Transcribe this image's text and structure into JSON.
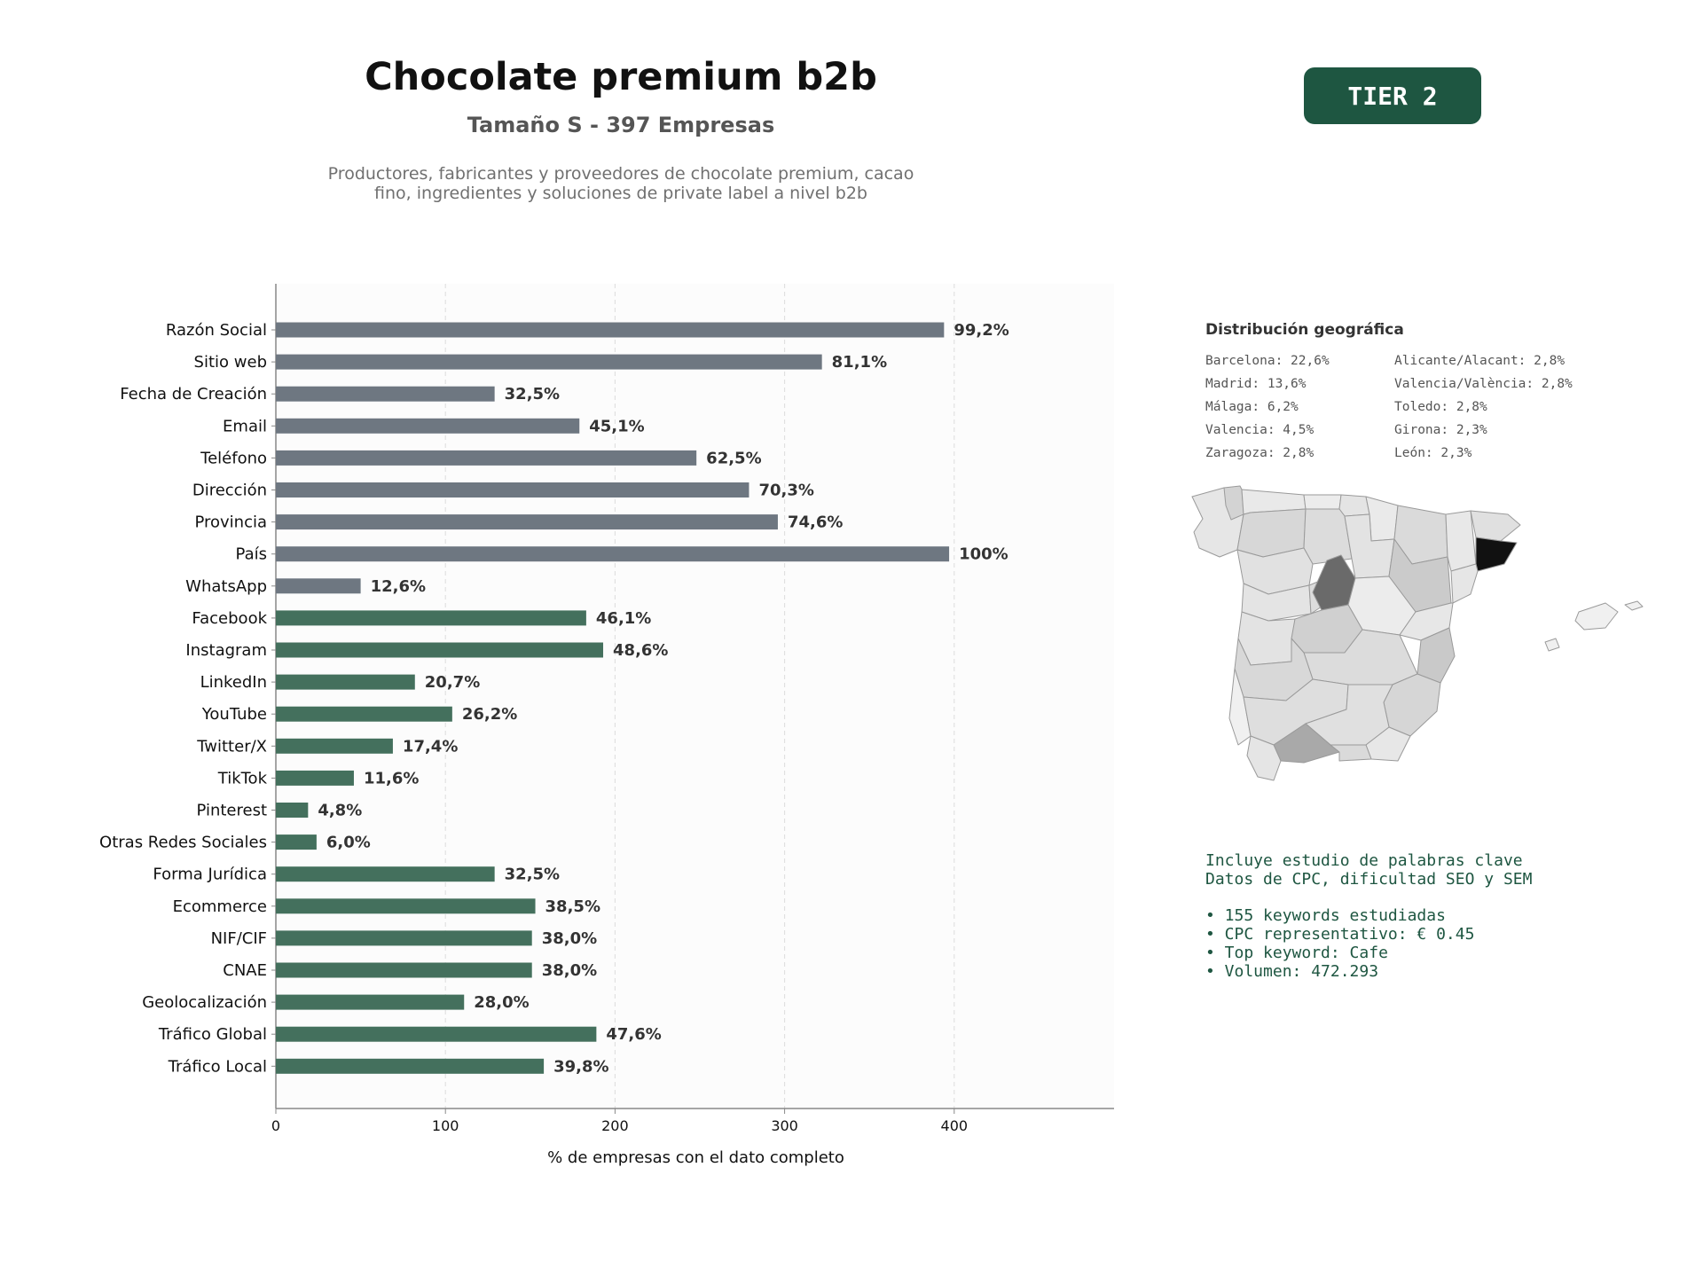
{
  "header": {
    "title": "Chocolate premium b2b",
    "subtitle": "Tamaño S - 397 Empresas",
    "description": [
      "Productores, fabricantes y proveedores de chocolate premium, cacao",
      "fino, ingredientes y soluciones de private label a nivel b2b"
    ],
    "tier": "TIER 2"
  },
  "colors": {
    "contact_bar": "#6e7781",
    "social_bar": "#44705d",
    "tier_badge": "#1e5641",
    "keyword_text": "#1e5641"
  },
  "chart_data": {
    "type": "bar",
    "orientation": "horizontal",
    "categories": [
      "Razón Social",
      "Sitio web",
      "Fecha de Creación",
      "Email",
      "Teléfono",
      "Dirección",
      "Provincia",
      "País",
      "WhatsApp",
      "Facebook",
      "Instagram",
      "LinkedIn",
      "YouTube",
      "Twitter/X",
      "TikTok",
      "Pinterest",
      "Otras Redes Sociales",
      "Forma Jurídica",
      "Ecommerce",
      "NIF/CIF",
      "CNAE",
      "Geolocalización",
      "Tráfico Global",
      "Tráfico Local"
    ],
    "values": [
      394,
      322,
      129,
      179,
      248,
      279,
      296,
      397,
      50,
      183,
      193,
      82,
      104,
      69,
      46,
      19,
      24,
      129,
      153,
      151,
      151,
      111,
      189,
      158
    ],
    "value_labels": [
      "99,2%",
      "81,1%",
      "32,5%",
      "45,1%",
      "62,5%",
      "70,3%",
      "74,6%",
      "100%",
      "12,6%",
      "46,1%",
      "48,6%",
      "20,7%",
      "26,2%",
      "17,4%",
      "11,6%",
      "4,8%",
      "6,0%",
      "32,5%",
      "38,5%",
      "38,0%",
      "38,0%",
      "28,0%",
      "47,6%",
      "39,8%"
    ],
    "groups": [
      "contact",
      "contact",
      "contact",
      "contact",
      "contact",
      "contact",
      "contact",
      "contact",
      "contact",
      "social",
      "social",
      "social",
      "social",
      "social",
      "social",
      "social",
      "social",
      "social",
      "social",
      "social",
      "social",
      "social",
      "social",
      "social"
    ],
    "xlabel": "% de empresas con el dato completo",
    "ylabel": "",
    "xlim": [
      0,
      496
    ],
    "xticks": [
      0,
      100,
      200,
      300,
      400
    ],
    "grid": "vertical-dashed"
  },
  "geo": {
    "title": "Distribución geográfica",
    "items": [
      "Barcelona: 22,6%",
      "Alicante/Alacant: 2,8%",
      "Madrid: 13,6%",
      "Valencia/València: 2,8%",
      "Málaga: 6,2%",
      "Toledo: 2,8%",
      "Valencia: 4,5%",
      "Girona: 2,3%",
      "Zaragoza: 2,8%",
      "León: 2,3%"
    ]
  },
  "keywords": {
    "line1": "Incluye estudio de palabras clave",
    "line2": "Datos de CPC, dificultad SEO y SEM",
    "bullets": [
      "• 155 keywords estudiadas",
      "• CPC representativo: € 0.45",
      "• Top keyword: Cafe",
      "• Volumen: 472.293"
    ]
  }
}
